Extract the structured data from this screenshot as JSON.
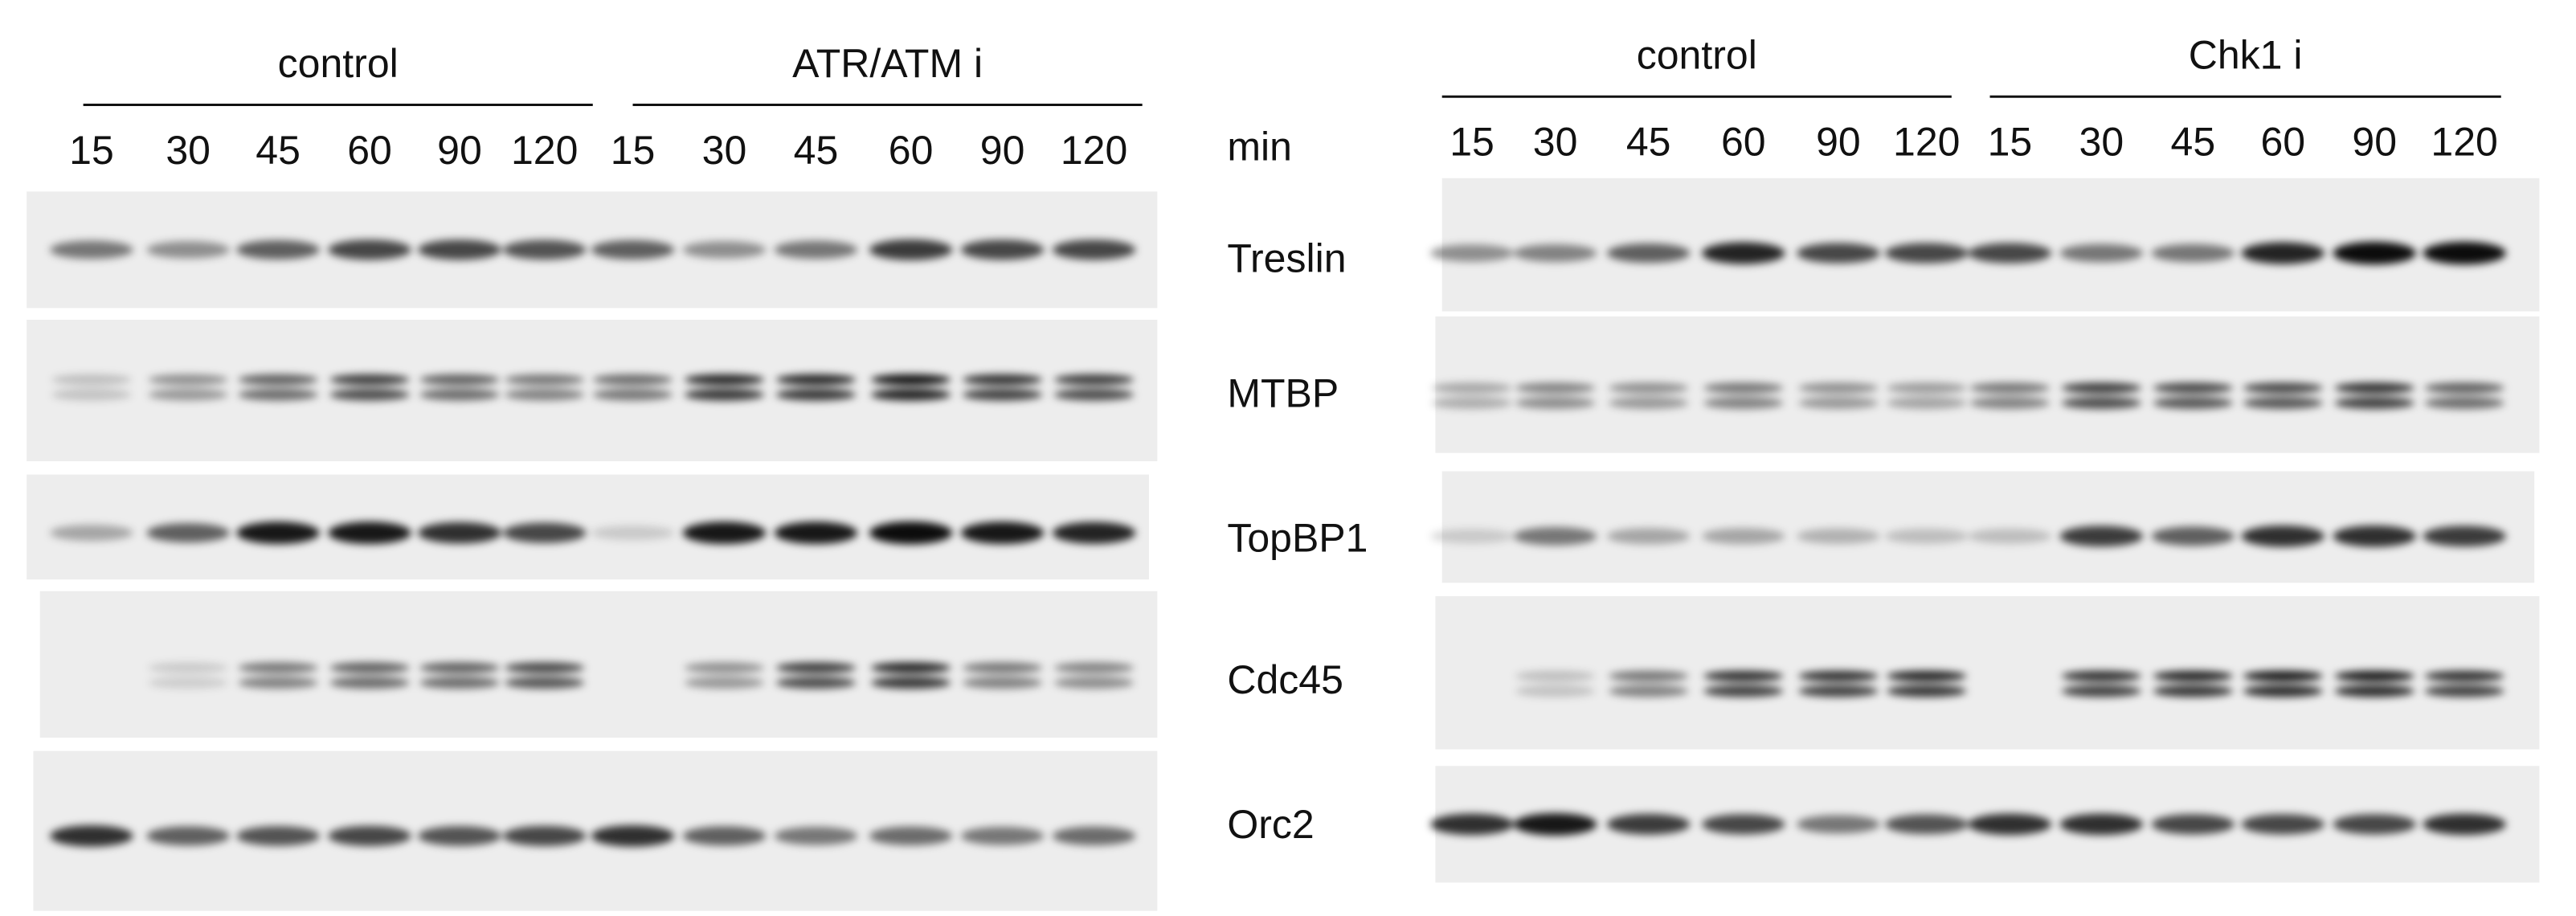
{
  "left_panel": {
    "groups": [
      "control",
      "ATR/ATM i"
    ],
    "times": [
      15,
      30,
      45,
      60,
      90,
      120,
      15,
      30,
      45,
      60,
      90,
      120
    ]
  },
  "time_unit": "min",
  "proteins": [
    "Treslin",
    "MTBP",
    "TopBP1",
    "Cdc45",
    "Orc2"
  ],
  "right_panel": {
    "groups": [
      "control",
      "Chk1 i"
    ],
    "times": [
      15,
      30,
      45,
      60,
      90,
      120,
      15,
      30,
      45,
      60,
      90,
      120
    ]
  }
}
